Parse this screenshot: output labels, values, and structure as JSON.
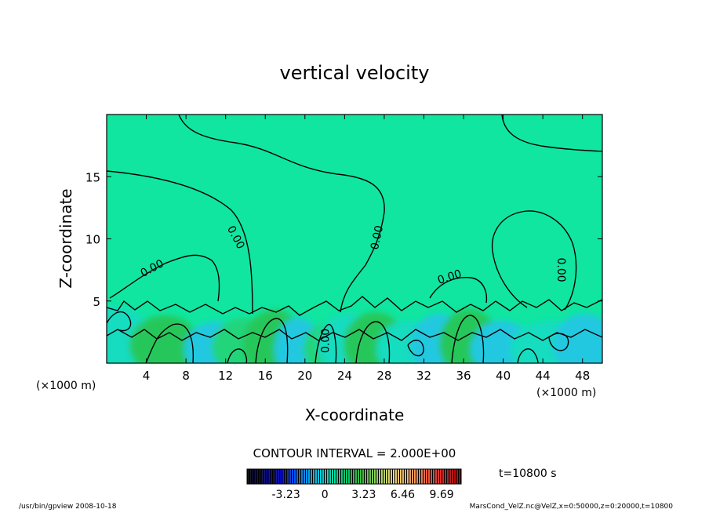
{
  "chart_data": {
    "type": "heatmap",
    "title": "vertical velocity",
    "xlabel": "X-coordinate",
    "ylabel": "Z-coordinate",
    "x_unit_left": "(×1000 m)",
    "x_unit_right": "(×1000 m)",
    "xlim": [
      0,
      50
    ],
    "ylim": [
      0,
      20
    ],
    "x_ticks": [
      4,
      8,
      12,
      16,
      20,
      24,
      28,
      32,
      36,
      40,
      44,
      48
    ],
    "y_ticks": [
      5,
      10,
      15
    ],
    "contour_labels": [
      {
        "text": "0.00",
        "x": 13.0,
        "y": 10.1,
        "angle": 62
      },
      {
        "text": "0.00",
        "x": 4.6,
        "y": 7.6,
        "angle": -28
      },
      {
        "text": "0.00",
        "x": 27.3,
        "y": 10.1,
        "angle": -78
      },
      {
        "text": "0.00",
        "x": 34.6,
        "y": 6.9,
        "angle": -18
      },
      {
        "text": "0.00",
        "x": 45.8,
        "y": 7.5,
        "angle": 90
      },
      {
        "text": "0.00",
        "x": 22.1,
        "y": 1.8,
        "angle": -90
      }
    ],
    "contour_interval_text": "CONTOUR INTERVAL = 2.000E+00",
    "colorbar": {
      "ticks": [
        "-3.23",
        "0",
        "3.23",
        "6.46",
        "9.69"
      ],
      "tick_values": [
        -3.23,
        0,
        3.23,
        6.46,
        9.69
      ],
      "range": [
        -6.46,
        11.31
      ],
      "colors": [
        "#000000",
        "#000060",
        "#0000c0",
        "#0060ff",
        "#00c0ff",
        "#00e8c0",
        "#00d070",
        "#40c040",
        "#a0e060",
        "#ffe080",
        "#ffb060",
        "#ff6040",
        "#e02020",
        "#a00000"
      ]
    },
    "field_colors": {
      "background": "#10e6a0",
      "strong_up": "#28c75a",
      "weak_up": "#20d47a",
      "down": "#20c8e0",
      "weak_down": "#18dcc0"
    },
    "time_label": "t=10800 s"
  },
  "footer": {
    "left": "/usr/bin/gpview  2008-10-18",
    "right": "MarsCond_VelZ.nc@VelZ,x=0:50000,z=0:20000,t=10800"
  }
}
